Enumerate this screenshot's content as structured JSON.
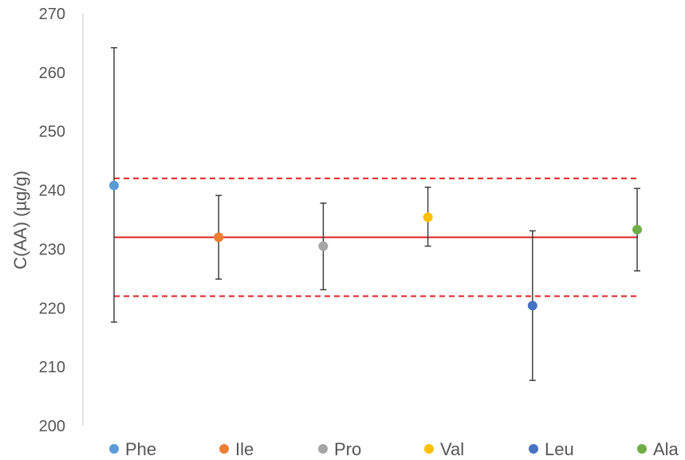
{
  "chart_data": {
    "type": "scatter",
    "title": "",
    "xlabel": "",
    "ylabel": "C(AA) (µg/g)",
    "ylim": [
      200,
      270
    ],
    "yticks": [
      200,
      210,
      220,
      230,
      240,
      250,
      260,
      270
    ],
    "grid": false,
    "legend": "bottom",
    "series": [
      {
        "name": "Phe",
        "x": 1,
        "y": 240.8,
        "err_low": 217.6,
        "err_high": 264.2,
        "color": "#5b9bd5"
      },
      {
        "name": "Ile",
        "x": 2,
        "y": 232.0,
        "err_low": 224.9,
        "err_high": 239.1,
        "color": "#ed7d31"
      },
      {
        "name": "Pro",
        "x": 3,
        "y": 230.5,
        "err_low": 223.1,
        "err_high": 237.8,
        "color": "#a5a5a5"
      },
      {
        "name": "Val",
        "x": 4,
        "y": 235.4,
        "err_low": 230.5,
        "err_high": 240.5,
        "color": "#ffc000"
      },
      {
        "name": "Leu",
        "x": 5,
        "y": 220.4,
        "err_low": 207.7,
        "err_high": 233.1,
        "color": "#4472c4"
      },
      {
        "name": "Ala",
        "x": 6,
        "y": 233.3,
        "err_low": 226.3,
        "err_high": 240.3,
        "color": "#70ad47"
      }
    ],
    "reference_lines": [
      {
        "y": 232.0,
        "style": "solid",
        "color": "#e02020"
      },
      {
        "y": 242.0,
        "style": "dashed",
        "color": "#e02020"
      },
      {
        "y": 222.0,
        "style": "dashed",
        "color": "#e02020"
      }
    ],
    "errorbar_color": "#404040",
    "axis_color": "#d9d9d9"
  }
}
